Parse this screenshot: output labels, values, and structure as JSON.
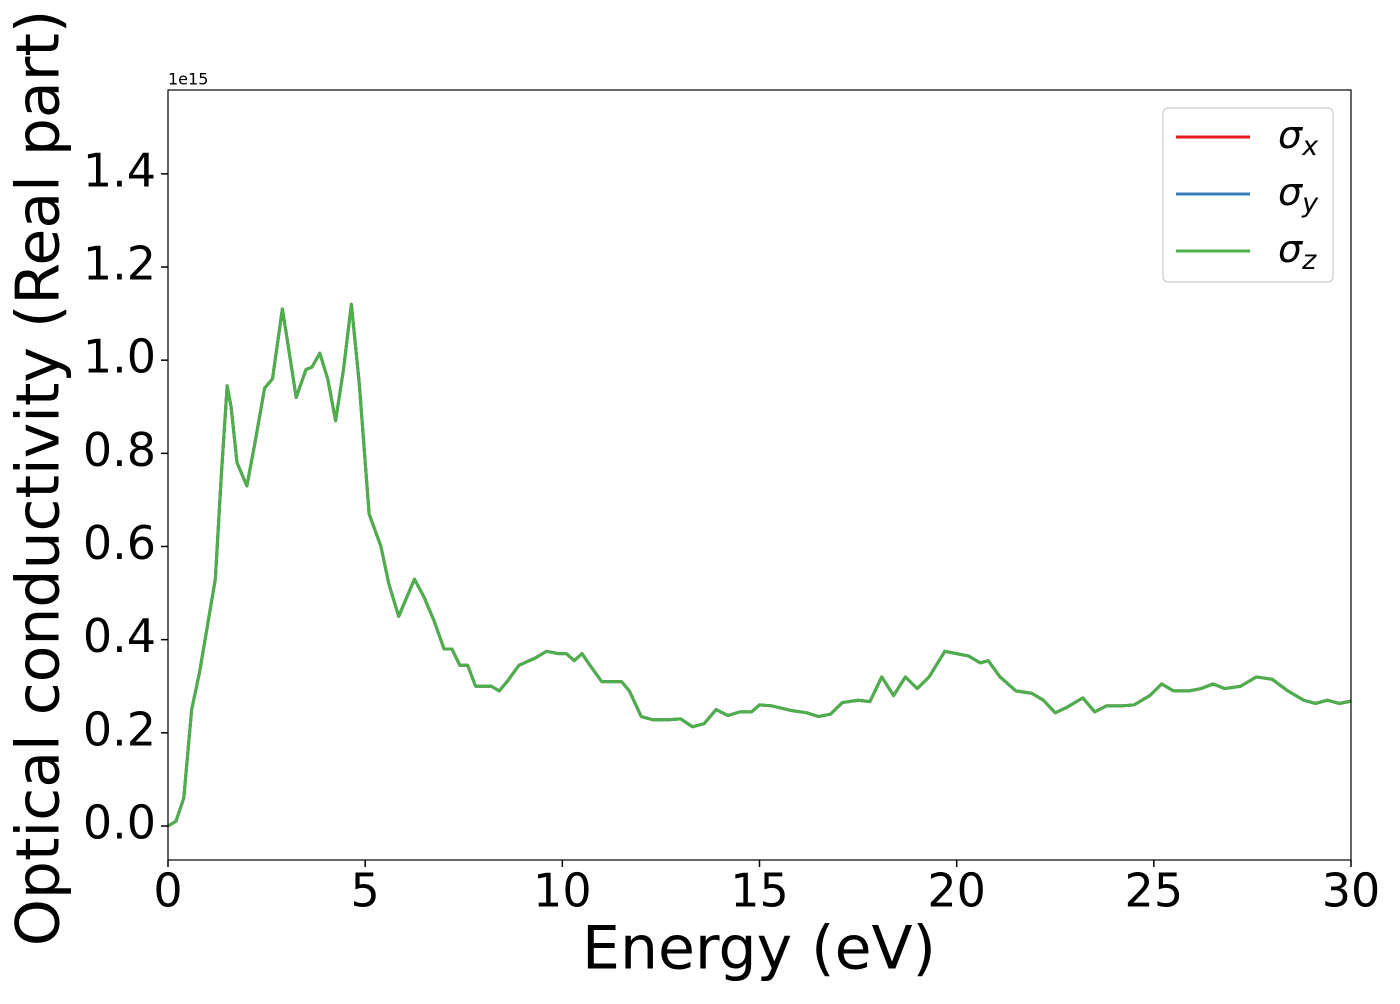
{
  "chart_data": {
    "type": "line",
    "xlabel": "Energy (eV)",
    "ylabel": "Optical conductivity (Real part)",
    "offset_label": "1e15",
    "x": [
      0,
      0.2,
      0.4,
      0.6,
      0.8,
      1.0,
      1.2,
      1.35,
      1.5,
      1.6,
      1.75,
      2.0,
      2.2,
      2.45,
      2.65,
      2.9,
      3.05,
      3.25,
      3.5,
      3.65,
      3.85,
      4.05,
      4.25,
      4.45,
      4.65,
      4.85,
      5.1,
      5.4,
      5.6,
      5.85,
      6.05,
      6.25,
      6.5,
      6.75,
      7.0,
      7.2,
      7.4,
      7.6,
      7.8,
      8.0,
      8.2,
      8.4,
      8.6,
      8.9,
      9.3,
      9.6,
      9.9,
      10.1,
      10.3,
      10.5,
      10.7,
      11.0,
      11.5,
      11.7,
      12.0,
      12.3,
      12.7,
      13.0,
      13.3,
      13.6,
      13.9,
      14.2,
      14.5,
      14.8,
      15.0,
      15.3,
      15.8,
      16.2,
      16.5,
      16.8,
      17.1,
      17.5,
      17.8,
      18.1,
      18.4,
      18.7,
      19.0,
      19.3,
      19.7,
      20.0,
      20.3,
      20.6,
      20.8,
      21.1,
      21.5,
      21.9,
      22.2,
      22.5,
      22.8,
      23.2,
      23.5,
      23.8,
      24.2,
      24.5,
      24.9,
      25.2,
      25.5,
      25.9,
      26.2,
      26.5,
      26.8,
      27.2,
      27.6,
      28.0,
      28.4,
      28.8,
      29.1,
      29.4,
      29.7,
      30.0
    ],
    "series": [
      {
        "name": "σx",
        "color": "#e41a1c",
        "values": [
          0,
          0.01,
          0.06,
          0.25,
          0.33,
          0.43,
          0.53,
          0.75,
          0.945,
          0.9,
          0.78,
          0.73,
          0.82,
          0.94,
          0.96,
          1.11,
          1.03,
          0.92,
          0.98,
          0.985,
          1.015,
          0.96,
          0.87,
          0.98,
          1.12,
          0.95,
          0.67,
          0.6,
          0.52,
          0.45,
          0.49,
          0.53,
          0.49,
          0.44,
          0.38,
          0.38,
          0.345,
          0.345,
          0.3,
          0.3,
          0.3,
          0.29,
          0.31,
          0.345,
          0.36,
          0.375,
          0.37,
          0.37,
          0.355,
          0.37,
          0.345,
          0.31,
          0.31,
          0.29,
          0.235,
          0.228,
          0.228,
          0.23,
          0.213,
          0.22,
          0.25,
          0.237,
          0.245,
          0.245,
          0.26,
          0.258,
          0.248,
          0.243,
          0.235,
          0.24,
          0.265,
          0.27,
          0.267,
          0.32,
          0.28,
          0.32,
          0.295,
          0.32,
          0.375,
          0.37,
          0.365,
          0.35,
          0.355,
          0.32,
          0.29,
          0.285,
          0.27,
          0.243,
          0.255,
          0.275,
          0.245,
          0.258,
          0.258,
          0.26,
          0.28,
          0.305,
          0.29,
          0.29,
          0.295,
          0.305,
          0.295,
          0.3,
          0.32,
          0.315,
          0.29,
          0.27,
          0.263,
          0.27,
          0.263,
          0.268
        ]
      },
      {
        "name": "σy",
        "color": "#377eb8",
        "values": [
          0,
          0.01,
          0.06,
          0.25,
          0.33,
          0.43,
          0.53,
          0.75,
          0.945,
          0.9,
          0.78,
          0.73,
          0.82,
          0.94,
          0.96,
          1.11,
          1.03,
          0.92,
          0.98,
          0.985,
          1.015,
          0.96,
          0.87,
          0.98,
          1.12,
          0.95,
          0.67,
          0.6,
          0.52,
          0.45,
          0.49,
          0.53,
          0.49,
          0.44,
          0.38,
          0.38,
          0.345,
          0.345,
          0.3,
          0.3,
          0.3,
          0.29,
          0.31,
          0.345,
          0.36,
          0.375,
          0.37,
          0.37,
          0.355,
          0.37,
          0.345,
          0.31,
          0.31,
          0.29,
          0.235,
          0.228,
          0.228,
          0.23,
          0.213,
          0.22,
          0.25,
          0.237,
          0.245,
          0.245,
          0.26,
          0.258,
          0.248,
          0.243,
          0.235,
          0.24,
          0.265,
          0.27,
          0.267,
          0.32,
          0.28,
          0.32,
          0.295,
          0.32,
          0.375,
          0.37,
          0.365,
          0.35,
          0.355,
          0.32,
          0.29,
          0.285,
          0.27,
          0.243,
          0.255,
          0.275,
          0.245,
          0.258,
          0.258,
          0.26,
          0.28,
          0.305,
          0.29,
          0.29,
          0.295,
          0.305,
          0.295,
          0.3,
          0.32,
          0.315,
          0.29,
          0.27,
          0.263,
          0.27,
          0.263,
          0.268
        ]
      },
      {
        "name": "σz",
        "color": "#4daf4a",
        "values": [
          0,
          0.01,
          0.06,
          0.25,
          0.33,
          0.43,
          0.53,
          0.75,
          0.945,
          0.9,
          0.78,
          0.73,
          0.82,
          0.94,
          0.96,
          1.11,
          1.03,
          0.92,
          0.98,
          0.985,
          1.015,
          0.96,
          0.87,
          0.98,
          1.12,
          0.95,
          0.67,
          0.6,
          0.52,
          0.45,
          0.49,
          0.53,
          0.49,
          0.44,
          0.38,
          0.38,
          0.345,
          0.345,
          0.3,
          0.3,
          0.3,
          0.29,
          0.31,
          0.345,
          0.36,
          0.375,
          0.37,
          0.37,
          0.355,
          0.37,
          0.345,
          0.31,
          0.31,
          0.29,
          0.235,
          0.228,
          0.228,
          0.23,
          0.213,
          0.22,
          0.25,
          0.237,
          0.245,
          0.245,
          0.26,
          0.258,
          0.248,
          0.243,
          0.235,
          0.24,
          0.265,
          0.27,
          0.267,
          0.32,
          0.28,
          0.32,
          0.295,
          0.32,
          0.375,
          0.37,
          0.365,
          0.35,
          0.355,
          0.32,
          0.29,
          0.285,
          0.27,
          0.243,
          0.255,
          0.275,
          0.245,
          0.258,
          0.258,
          0.26,
          0.28,
          0.305,
          0.29,
          0.29,
          0.295,
          0.305,
          0.295,
          0.3,
          0.32,
          0.315,
          0.29,
          0.27,
          0.263,
          0.27,
          0.263,
          0.268
        ]
      }
    ],
    "xlim": [
      0,
      30
    ],
    "xticks": [
      0,
      5,
      10,
      15,
      20,
      25,
      30
    ],
    "ylim": [
      -0.073,
      1.58
    ],
    "yticks": [
      {
        "value": 0,
        "label": "0.0"
      },
      0.2,
      0.4,
      0.6,
      0.8,
      {
        "value": 1,
        "label": "1.0"
      },
      1.2,
      1.4
    ],
    "grid": false,
    "legend": "upper right"
  }
}
